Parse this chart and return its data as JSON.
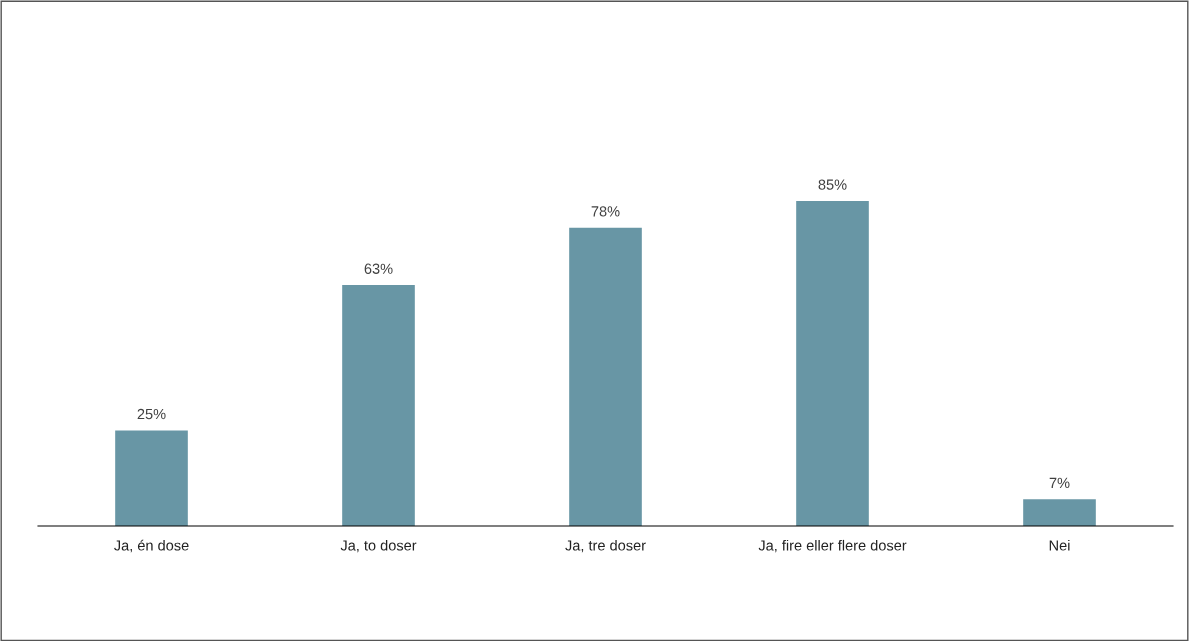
{
  "chart_data": {
    "type": "bar",
    "categories": [
      "Ja, én dose",
      "Ja, to doser",
      "Ja, tre doser",
      "Ja, fire eller flere doser",
      "Nei"
    ],
    "values": [
      25,
      63,
      78,
      85,
      7
    ],
    "value_labels": [
      "25%",
      "63%",
      "78%",
      "85%",
      "7%"
    ],
    "color": "#6896a5",
    "grid": false,
    "tick_labels": "x"
  }
}
